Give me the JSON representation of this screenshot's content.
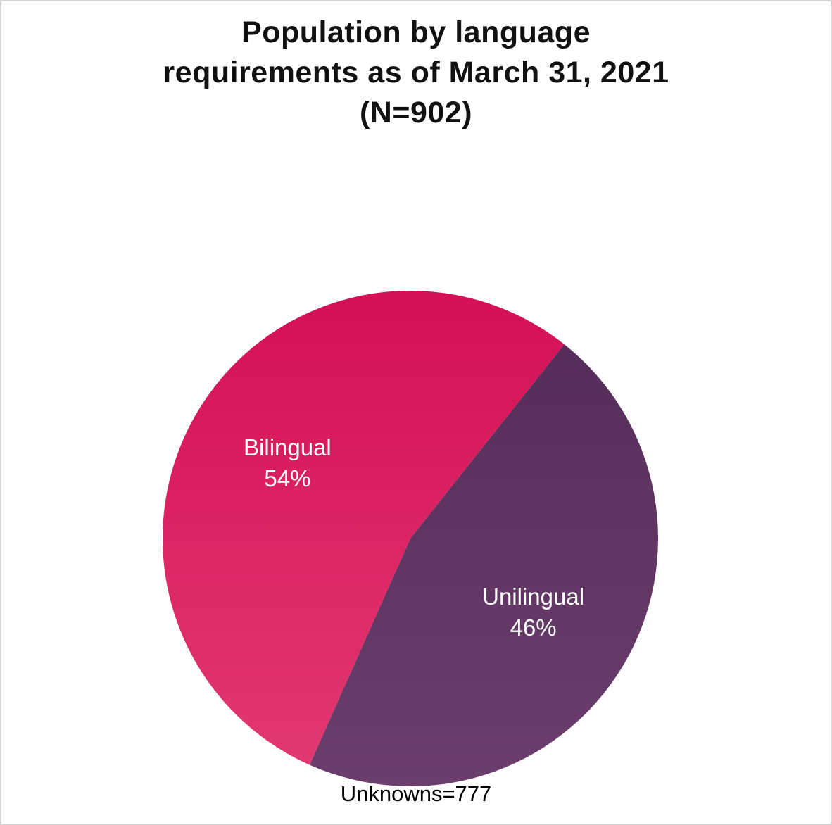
{
  "chart_data": {
    "type": "pie",
    "title": "Population by language\nrequirements as of March 31, 2021\n(N=902)",
    "categories": [
      "Bilingual",
      "Unilingual"
    ],
    "values": [
      54,
      46
    ],
    "slices": [
      {
        "label": "Bilingual",
        "value": 54,
        "percent_label": "54%",
        "color_top": "#d40f55",
        "color_bottom": "#e23a72"
      },
      {
        "label": "Unilingual",
        "value": 46,
        "percent_label": "46%",
        "color_top": "#542c58",
        "color_bottom": "#6b3e6d"
      }
    ],
    "note": "Unknowns=777",
    "legend": "none",
    "label_position": "inside",
    "start_angle": 204
  }
}
